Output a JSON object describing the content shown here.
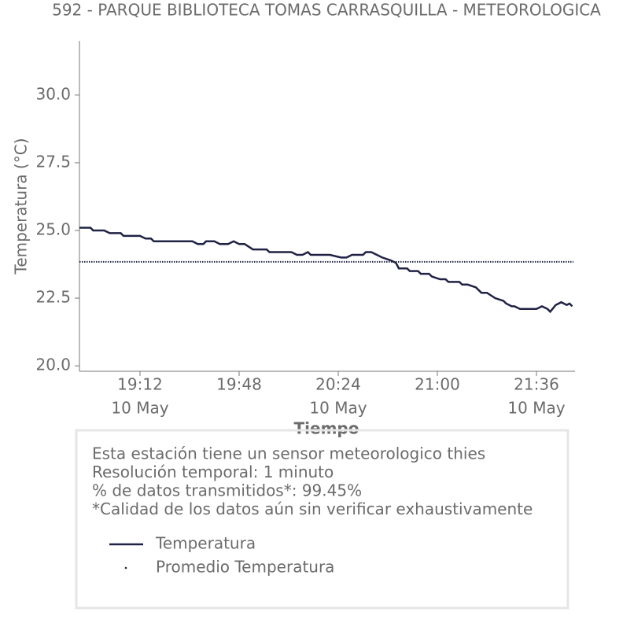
{
  "chart_data": {
    "type": "line",
    "title": "592 - PARQUE BIBLIOTECA TOMAS CARRASQUILLA - METEOROLOGICA",
    "xlabel": "Tiempo",
    "ylabel": "Temperatura (°C)",
    "x": [
      "18:50",
      "18:54",
      "18:55",
      "18:59",
      "19:01",
      "19:05",
      "19:06",
      "19:12",
      "19:14",
      "19:16",
      "19:17",
      "19:31",
      "19:33",
      "19:35",
      "19:36",
      "19:39",
      "19:41",
      "19:44",
      "19:46",
      "19:48",
      "19:50",
      "19:53",
      "19:58",
      "19:59",
      "20:07",
      "20:09",
      "20:11",
      "20:13",
      "20:14",
      "20:21",
      "20:25",
      "20:27",
      "20:29",
      "20:33",
      "20:34",
      "20:36",
      "20:40",
      "20:43",
      "20:45",
      "20:46",
      "20:49",
      "20:50",
      "20:53",
      "20:54",
      "20:57",
      "20:58",
      "21:01",
      "21:03",
      "21:04",
      "21:08",
      "21:09",
      "21:11",
      "21:14",
      "21:16",
      "21:18",
      "21:21",
      "21:24",
      "21:25",
      "21:27",
      "21:28",
      "21:30",
      "21:35",
      "21:36",
      "21:38",
      "21:40",
      "21:41",
      "21:43",
      "21:45",
      "21:47",
      "21:48",
      "21:49"
    ],
    "series": [
      {
        "name": "Temperatura",
        "color": "#1f2244",
        "values": [
          25.1,
          25.1,
          25.0,
          25.0,
          24.9,
          24.9,
          24.8,
          24.8,
          24.7,
          24.7,
          24.6,
          24.6,
          24.5,
          24.5,
          24.6,
          24.6,
          24.5,
          24.5,
          24.6,
          24.5,
          24.5,
          24.3,
          24.3,
          24.2,
          24.2,
          24.1,
          24.1,
          24.2,
          24.1,
          24.1,
          24.0,
          24.0,
          24.1,
          24.1,
          24.2,
          24.2,
          24.0,
          23.9,
          23.8,
          23.6,
          23.6,
          23.5,
          23.5,
          23.4,
          23.4,
          23.3,
          23.2,
          23.2,
          23.1,
          23.1,
          23.0,
          23.0,
          22.9,
          22.7,
          22.7,
          22.5,
          22.4,
          22.3,
          22.2,
          22.2,
          22.1,
          22.1,
          22.1,
          22.2,
          22.1,
          22.0,
          22.25,
          22.35,
          22.25,
          22.3,
          22.2
        ]
      },
      {
        "name": "Promedio Temperatura",
        "color": "#1f2244",
        "style": "dotted",
        "value": 23.84
      }
    ],
    "xlim": [
      "18:50",
      "21:50"
    ],
    "xticks": [
      {
        "value": "19:12",
        "label": "19:12",
        "date": "10 May"
      },
      {
        "value": "19:48",
        "label": "19:48"
      },
      {
        "value": "20:24",
        "label": "20:24",
        "date": "10 May"
      },
      {
        "value": "21:00",
        "label": "21:00"
      },
      {
        "value": "21:36",
        "label": "21:36",
        "date": "10 May"
      }
    ],
    "ylim": [
      19.8,
      32
    ],
    "yticks": [
      {
        "value": 20,
        "label": "20.0"
      },
      {
        "value": 22.5,
        "label": "22.5"
      },
      {
        "value": 25,
        "label": "25.0"
      },
      {
        "value": 27.5,
        "label": "27.5"
      },
      {
        "value": 30,
        "label": "30.0"
      }
    ],
    "info": [
      "Esta estación tiene un sensor meteorologico thies",
      "Resolución temporal: 1 minuto",
      "% de datos transmitidos*: 99.45%",
      "*Calidad de los datos aún sin verificar exhaustivamente"
    ]
  }
}
